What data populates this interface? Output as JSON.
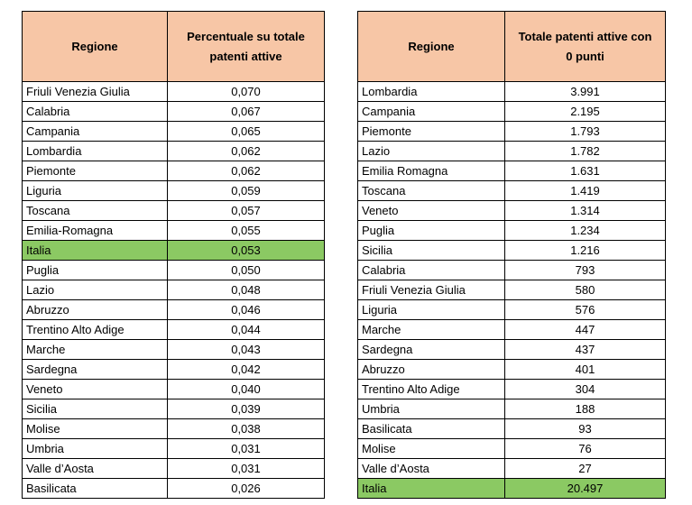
{
  "table_left": {
    "headers": [
      "Regione",
      "Percentuale su totale patenti attive"
    ],
    "rows": [
      [
        "Friuli Venezia Giulia",
        "0,070"
      ],
      [
        "Calabria",
        "0,067"
      ],
      [
        "Campania",
        "0,065"
      ],
      [
        "Lombardia",
        "0,062"
      ],
      [
        "Piemonte",
        "0,062"
      ],
      [
        "Liguria",
        "0,059"
      ],
      [
        "Toscana",
        "0,057"
      ],
      [
        "Emilia-Romagna",
        "0,055"
      ],
      [
        "Italia",
        "0,053"
      ],
      [
        "Puglia",
        "0,050"
      ],
      [
        "Lazio",
        "0,048"
      ],
      [
        "Abruzzo",
        "0,046"
      ],
      [
        "Trentino Alto Adige",
        "0,044"
      ],
      [
        "Marche",
        "0,043"
      ],
      [
        "Sardegna",
        "0,042"
      ],
      [
        "Veneto",
        "0,040"
      ],
      [
        "Sicilia",
        "0,039"
      ],
      [
        "Molise",
        "0,038"
      ],
      [
        "Umbria",
        "0,031"
      ],
      [
        "Valle d’Aosta",
        "0,031"
      ],
      [
        "Basilicata",
        "0,026"
      ]
    ],
    "highlight_row": 8
  },
  "table_right": {
    "headers": [
      "Regione",
      "Totale patenti attive con 0 punti"
    ],
    "rows": [
      [
        "Lombardia",
        "3.991"
      ],
      [
        "Campania",
        "2.195"
      ],
      [
        "Piemonte",
        "1.793"
      ],
      [
        "Lazio",
        "1.782"
      ],
      [
        "Emilia Romagna",
        "1.631"
      ],
      [
        "Toscana",
        "1.419"
      ],
      [
        "Veneto",
        "1.314"
      ],
      [
        "Puglia",
        "1.234"
      ],
      [
        "Sicilia",
        "1.216"
      ],
      [
        "Calabria",
        "793"
      ],
      [
        "Friuli Venezia Giulia",
        "580"
      ],
      [
        "Liguria",
        "576"
      ],
      [
        "Marche",
        "447"
      ],
      [
        "Sardegna",
        "437"
      ],
      [
        "Abruzzo",
        "401"
      ],
      [
        "Trentino Alto Adige",
        "304"
      ],
      [
        "Umbria",
        "188"
      ],
      [
        "Basilicata",
        "93"
      ],
      [
        "Molise",
        "76"
      ],
      [
        "Valle d’Aosta",
        "27"
      ],
      [
        "Italia",
        "20.497"
      ]
    ],
    "highlight_row": 20
  },
  "colors": {
    "header_bg": "#f7c6a6",
    "highlight_bg": "#8bc963"
  }
}
